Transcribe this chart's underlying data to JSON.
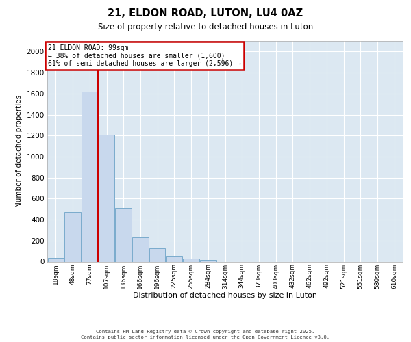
{
  "title1": "21, ELDON ROAD, LUTON, LU4 0AZ",
  "title2": "Size of property relative to detached houses in Luton",
  "xlabel": "Distribution of detached houses by size in Luton",
  "ylabel": "Number of detached properties",
  "categories": [
    "18sqm",
    "48sqm",
    "77sqm",
    "107sqm",
    "136sqm",
    "166sqm",
    "196sqm",
    "225sqm",
    "255sqm",
    "284sqm",
    "314sqm",
    "344sqm",
    "373sqm",
    "403sqm",
    "432sqm",
    "462sqm",
    "492sqm",
    "521sqm",
    "551sqm",
    "580sqm",
    "610sqm"
  ],
  "values": [
    35,
    470,
    1620,
    1210,
    510,
    230,
    125,
    55,
    30,
    15,
    0,
    0,
    0,
    0,
    0,
    0,
    0,
    0,
    0,
    0,
    0
  ],
  "bar_color": "#c8d8ed",
  "bar_edge_color": "#7aabcc",
  "red_line_x": 2.5,
  "annotation_title": "21 ELDON ROAD: 99sqm",
  "annotation_line1": "← 38% of detached houses are smaller (1,600)",
  "annotation_line2": "61% of semi-detached houses are larger (2,596) →",
  "annotation_box_facecolor": "#ffffff",
  "annotation_box_edgecolor": "#cc0000",
  "ylim": [
    0,
    2100
  ],
  "yticks": [
    0,
    200,
    400,
    600,
    800,
    1000,
    1200,
    1400,
    1600,
    1800,
    2000
  ],
  "grid_color": "#c5d5e5",
  "plot_bg_color": "#dce8f2",
  "footer1": "Contains HM Land Registry data © Crown copyright and database right 2025.",
  "footer2": "Contains public sector information licensed under the Open Government Licence v3.0."
}
